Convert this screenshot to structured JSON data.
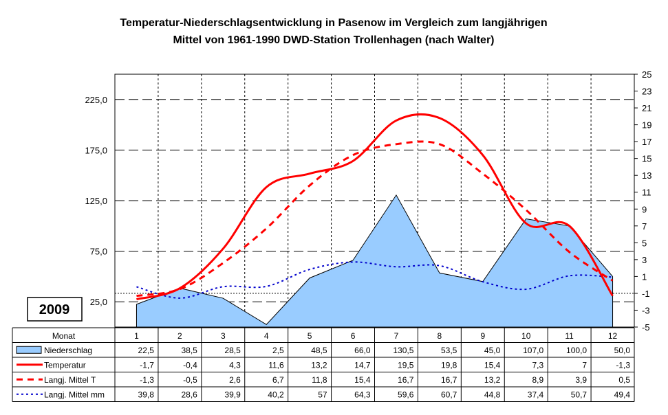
{
  "chart_data": {
    "type": "area",
    "title_line1": "Temperatur-Niederschlagsentwicklung in Pasenow im Vergleich zum langjährigen",
    "title_line2": "Mittel von 1961-1990 DWD-Station Trollenhagen (nach Walter)",
    "year_label": "2009",
    "categories": [
      "1",
      "2",
      "3",
      "4",
      "5",
      "6",
      "7",
      "8",
      "9",
      "10",
      "11",
      "12"
    ],
    "category_header": "Monat",
    "left_axis": {
      "ticks": [
        "225,0",
        "175,0",
        "125,0",
        "75,0",
        "25,0"
      ],
      "tick_values": [
        225,
        175,
        125,
        75,
        25
      ],
      "range": [
        0,
        250
      ]
    },
    "right_axis": {
      "ticks": [
        "25",
        "23",
        "21",
        "19",
        "17",
        "15",
        "13",
        "11",
        "9",
        "7",
        "5",
        "3",
        "1",
        "-1",
        "-3",
        "-5"
      ],
      "tick_values": [
        25,
        23,
        21,
        19,
        17,
        15,
        13,
        11,
        9,
        7,
        5,
        3,
        1,
        -1,
        -3,
        -5
      ],
      "range": [
        -5,
        25
      ]
    },
    "grid": true,
    "legend_placement": "table-bottom",
    "series": [
      {
        "name": "Niederschlag",
        "axis": "left",
        "kind": "area",
        "color": "#99CCFF",
        "values": [
          22.5,
          38.5,
          28.5,
          2.5,
          48.5,
          66.0,
          130.5,
          53.5,
          45.0,
          107.0,
          100.0,
          50.0
        ],
        "labels": [
          "22,5",
          "38,5",
          "28,5",
          "2,5",
          "48,5",
          "66,0",
          "130,5",
          "53,5",
          "45,0",
          "107,0",
          "100,0",
          "50,0"
        ]
      },
      {
        "name": "Temperatur",
        "axis": "right",
        "kind": "line",
        "color": "#FF0000",
        "style": "solid",
        "values": [
          -1.7,
          -0.4,
          4.3,
          11.6,
          13.2,
          14.7,
          19.5,
          19.8,
          15.4,
          7.3,
          7,
          -1.3
        ],
        "labels": [
          "-1,7",
          "-0,4",
          "4,3",
          "11,6",
          "13,2",
          "14,7",
          "19,5",
          "19,8",
          "15,4",
          "7,3",
          "7",
          "-1,3"
        ]
      },
      {
        "name": "Langj. Mittel T",
        "axis": "right",
        "kind": "line",
        "color": "#FF0000",
        "style": "dashed",
        "values": [
          -1.3,
          -0.5,
          2.6,
          6.7,
          11.8,
          15.4,
          16.7,
          16.7,
          13.2,
          8.9,
          3.9,
          0.5
        ],
        "labels": [
          "-1,3",
          "-0,5",
          "2,6",
          "6,7",
          "11,8",
          "15,4",
          "16,7",
          "16,7",
          "13,2",
          "8,9",
          "3,9",
          "0,5"
        ]
      },
      {
        "name": "Langj. Mittel mm",
        "axis": "left",
        "kind": "line",
        "color": "#0000CC",
        "style": "dotted",
        "values": [
          39.8,
          28.6,
          39.9,
          40.2,
          57,
          64.3,
          59.6,
          60.7,
          44.8,
          37.4,
          50.7,
          49.4
        ],
        "labels": [
          "39,8",
          "28,6",
          "39,9",
          "40,2",
          "57",
          "64,3",
          "59,6",
          "60,7",
          "44,8",
          "37,4",
          "50,7",
          "49,4"
        ]
      }
    ]
  }
}
